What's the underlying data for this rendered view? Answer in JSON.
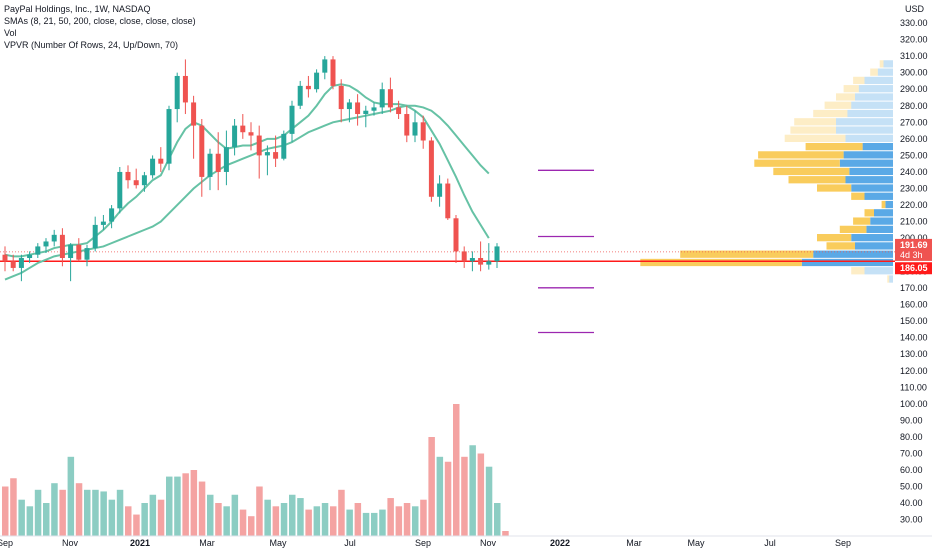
{
  "legend": {
    "line1": "PayPal Holdings, Inc., 1W, NASDAQ",
    "line2": "SMAs (8, 21, 50, 200, close, close, close, close)",
    "line3": "Vol",
    "line4": "VPVR (Number Of Rows, 24, Up/Down, 70)"
  },
  "axis": {
    "currency_label": "USD",
    "price_ticks": [
      "330.00",
      "320.00",
      "310.00",
      "300.00",
      "290.00",
      "280.00",
      "270.00",
      "260.00",
      "250.00",
      "240.00",
      "230.00",
      "220.00",
      "210.00",
      "200.00",
      "190.00",
      "180.00",
      "170.00",
      "160.00",
      "150.00",
      "140.00",
      "130.00",
      "120.00",
      "110.00",
      "100.00",
      "90.00",
      "80.00",
      "70.00",
      "60.00",
      "50.00",
      "40.00",
      "30.00"
    ],
    "time_labels": [
      {
        "label": "Sep",
        "year": false
      },
      {
        "label": "Nov",
        "year": false
      },
      {
        "label": "2021",
        "year": true
      },
      {
        "label": "Mar",
        "year": false
      },
      {
        "label": "May",
        "year": false
      },
      {
        "label": "Jul",
        "year": false
      },
      {
        "label": "Sep",
        "year": false
      },
      {
        "label": "Nov",
        "year": false
      },
      {
        "label": "2022",
        "year": true
      },
      {
        "label": "Mar",
        "year": false
      },
      {
        "label": "May",
        "year": false
      },
      {
        "label": "Jul",
        "year": false
      },
      {
        "label": "Sep",
        "year": false
      }
    ]
  },
  "badges": {
    "last_price": "191.69",
    "countdown": "4d 3h",
    "line_price": "186.05"
  },
  "colors": {
    "up": "#26a69a",
    "down": "#ef5350",
    "up_vol": "#8ccdc3",
    "down_vol": "#f4a3a2",
    "sma": "#66c2a5",
    "hline": "#ff1a1a",
    "level": "#9c27b0",
    "vp_up": "#5aa9e6",
    "vp_down": "#f9cc5c"
  },
  "chart_data": {
    "type": "candlestick",
    "title": "PayPal Holdings, Inc., 1W, NASDAQ",
    "price_range": [
      130,
      330
    ],
    "volume_scale_ticks": [
      30,
      100
    ],
    "candles": [
      {
        "o": 190,
        "h": 195,
        "l": 180,
        "c": 186,
        "v": 50
      },
      {
        "o": 186,
        "h": 190,
        "l": 180,
        "c": 182,
        "v": 55
      },
      {
        "o": 182,
        "h": 190,
        "l": 174,
        "c": 188,
        "v": 42
      },
      {
        "o": 188,
        "h": 192,
        "l": 185,
        "c": 190,
        "v": 38
      },
      {
        "o": 190,
        "h": 197,
        "l": 188,
        "c": 195,
        "v": 48
      },
      {
        "o": 195,
        "h": 200,
        "l": 191,
        "c": 198,
        "v": 40
      },
      {
        "o": 198,
        "h": 205,
        "l": 195,
        "c": 202,
        "v": 52
      },
      {
        "o": 202,
        "h": 206,
        "l": 183,
        "c": 188,
        "v": 48
      },
      {
        "o": 188,
        "h": 197,
        "l": 174,
        "c": 196,
        "v": 68
      },
      {
        "o": 196,
        "h": 200,
        "l": 186,
        "c": 187,
        "v": 52
      },
      {
        "o": 187,
        "h": 196,
        "l": 183,
        "c": 194,
        "v": 48
      },
      {
        "o": 194,
        "h": 213,
        "l": 192,
        "c": 208,
        "v": 48
      },
      {
        "o": 208,
        "h": 214,
        "l": 205,
        "c": 210,
        "v": 47
      },
      {
        "o": 210,
        "h": 220,
        "l": 206,
        "c": 218,
        "v": 42
      },
      {
        "o": 218,
        "h": 243,
        "l": 215,
        "c": 240,
        "v": 48
      },
      {
        "o": 240,
        "h": 244,
        "l": 230,
        "c": 235,
        "v": 38
      },
      {
        "o": 235,
        "h": 242,
        "l": 230,
        "c": 232,
        "v": 33
      },
      {
        "o": 232,
        "h": 240,
        "l": 228,
        "c": 238,
        "v": 40
      },
      {
        "o": 238,
        "h": 250,
        "l": 236,
        "c": 248,
        "v": 45
      },
      {
        "o": 248,
        "h": 255,
        "l": 240,
        "c": 245,
        "v": 42
      },
      {
        "o": 245,
        "h": 280,
        "l": 241,
        "c": 278,
        "v": 56
      },
      {
        "o": 278,
        "h": 300,
        "l": 270,
        "c": 298,
        "v": 56
      },
      {
        "o": 298,
        "h": 308,
        "l": 275,
        "c": 282,
        "v": 58
      },
      {
        "o": 282,
        "h": 286,
        "l": 248,
        "c": 268,
        "v": 60
      },
      {
        "o": 268,
        "h": 272,
        "l": 225,
        "c": 237,
        "v": 53
      },
      {
        "o": 237,
        "h": 254,
        "l": 229,
        "c": 251,
        "v": 45
      },
      {
        "o": 251,
        "h": 264,
        "l": 229,
        "c": 240,
        "v": 40
      },
      {
        "o": 240,
        "h": 265,
        "l": 232,
        "c": 255,
        "v": 38
      },
      {
        "o": 255,
        "h": 272,
        "l": 250,
        "c": 268,
        "v": 45
      },
      {
        "o": 268,
        "h": 275,
        "l": 260,
        "c": 264,
        "v": 36
      },
      {
        "o": 264,
        "h": 270,
        "l": 253,
        "c": 262,
        "v": 32
      },
      {
        "o": 262,
        "h": 268,
        "l": 236,
        "c": 250,
        "v": 50
      },
      {
        "o": 250,
        "h": 256,
        "l": 238,
        "c": 252,
        "v": 42
      },
      {
        "o": 252,
        "h": 262,
        "l": 243,
        "c": 248,
        "v": 38
      },
      {
        "o": 248,
        "h": 265,
        "l": 247,
        "c": 263,
        "v": 40
      },
      {
        "o": 263,
        "h": 283,
        "l": 258,
        "c": 280,
        "v": 45
      },
      {
        "o": 280,
        "h": 295,
        "l": 278,
        "c": 292,
        "v": 43
      },
      {
        "o": 292,
        "h": 298,
        "l": 285,
        "c": 290,
        "v": 36
      },
      {
        "o": 290,
        "h": 302,
        "l": 288,
        "c": 300,
        "v": 38
      },
      {
        "o": 300,
        "h": 310,
        "l": 296,
        "c": 308,
        "v": 40
      },
      {
        "o": 308,
        "h": 310,
        "l": 290,
        "c": 292,
        "v": 38
      },
      {
        "o": 292,
        "h": 296,
        "l": 270,
        "c": 278,
        "v": 48
      },
      {
        "o": 278,
        "h": 284,
        "l": 270,
        "c": 282,
        "v": 36
      },
      {
        "o": 282,
        "h": 287,
        "l": 268,
        "c": 275,
        "v": 40
      },
      {
        "o": 275,
        "h": 280,
        "l": 267,
        "c": 277,
        "v": 34
      },
      {
        "o": 277,
        "h": 282,
        "l": 274,
        "c": 279,
        "v": 34
      },
      {
        "o": 279,
        "h": 294,
        "l": 275,
        "c": 290,
        "v": 36
      },
      {
        "o": 290,
        "h": 297,
        "l": 276,
        "c": 279,
        "v": 43
      },
      {
        "o": 279,
        "h": 283,
        "l": 272,
        "c": 275,
        "v": 38
      },
      {
        "o": 275,
        "h": 280,
        "l": 258,
        "c": 262,
        "v": 40
      },
      {
        "o": 262,
        "h": 277,
        "l": 258,
        "c": 270,
        "v": 38
      },
      {
        "o": 270,
        "h": 274,
        "l": 254,
        "c": 259,
        "v": 42
      },
      {
        "o": 259,
        "h": 261,
        "l": 222,
        "c": 225,
        "v": 80
      },
      {
        "o": 225,
        "h": 238,
        "l": 219,
        "c": 233,
        "v": 68
      },
      {
        "o": 233,
        "h": 236,
        "l": 211,
        "c": 212,
        "v": 65
      },
      {
        "o": 212,
        "h": 214,
        "l": 185,
        "c": 192,
        "v": 100
      },
      {
        "o": 192,
        "h": 195,
        "l": 182,
        "c": 186,
        "v": 68
      },
      {
        "o": 186,
        "h": 192,
        "l": 180,
        "c": 188,
        "v": 75
      },
      {
        "o": 188,
        "h": 198,
        "l": 180,
        "c": 184,
        "v": 70
      },
      {
        "o": 184,
        "h": 197,
        "l": 181,
        "c": 186,
        "v": 62
      },
      {
        "o": 186,
        "h": 197,
        "l": 182,
        "c": 195,
        "v": 40
      }
    ],
    "sma_fast": [
      190,
      189,
      189,
      190,
      191,
      192,
      194,
      195,
      196,
      196,
      197,
      201,
      205,
      210,
      216,
      221,
      225,
      230,
      235,
      238,
      248,
      258,
      266,
      270,
      268,
      263,
      258,
      254,
      255,
      256,
      256,
      258,
      260,
      260,
      262,
      266,
      270,
      274,
      280,
      287,
      292,
      293,
      292,
      289,
      285,
      282,
      281,
      281,
      281,
      280,
      277,
      273,
      265,
      257,
      247,
      237,
      226,
      216,
      208,
      200
    ],
    "sma_slow": [
      175,
      177,
      179,
      182,
      185,
      187,
      189,
      190,
      191,
      192,
      193,
      194,
      195,
      197,
      199,
      201,
      203,
      205,
      207,
      210,
      215,
      220,
      225,
      230,
      234,
      238,
      241,
      244,
      246,
      248,
      250,
      252,
      254,
      255,
      256,
      258,
      261,
      264,
      266,
      268,
      270,
      271,
      272,
      273,
      274,
      275,
      276,
      277,
      279,
      280,
      280,
      279,
      277,
      273,
      268,
      262,
      256,
      250,
      244,
      239
    ],
    "volume_profile": [
      {
        "price": 175,
        "up": 2,
        "down": 1
      },
      {
        "price": 180,
        "up": 15,
        "down": 7
      },
      {
        "price": 185,
        "up": 48,
        "down": 85
      },
      {
        "price": 190,
        "up": 42,
        "down": 70
      },
      {
        "price": 195,
        "up": 20,
        "down": 15
      },
      {
        "price": 200,
        "up": 22,
        "down": 18
      },
      {
        "price": 205,
        "up": 14,
        "down": 14
      },
      {
        "price": 210,
        "up": 12,
        "down": 9
      },
      {
        "price": 215,
        "up": 10,
        "down": 5
      },
      {
        "price": 220,
        "up": 4,
        "down": 2
      },
      {
        "price": 225,
        "up": 15,
        "down": 7
      },
      {
        "price": 230,
        "up": 22,
        "down": 18
      },
      {
        "price": 235,
        "up": 25,
        "down": 30
      },
      {
        "price": 240,
        "up": 23,
        "down": 40
      },
      {
        "price": 245,
        "up": 28,
        "down": 45
      },
      {
        "price": 250,
        "up": 26,
        "down": 45
      },
      {
        "price": 255,
        "up": 16,
        "down": 30
      },
      {
        "price": 260,
        "up": 25,
        "down": 32
      },
      {
        "price": 265,
        "up": 30,
        "down": 24
      },
      {
        "price": 270,
        "up": 30,
        "down": 22
      },
      {
        "price": 275,
        "up": 24,
        "down": 18
      },
      {
        "price": 280,
        "up": 22,
        "down": 14
      },
      {
        "price": 285,
        "up": 20,
        "down": 10
      },
      {
        "price": 290,
        "up": 18,
        "down": 8
      },
      {
        "price": 295,
        "up": 15,
        "down": 6
      },
      {
        "price": 300,
        "up": 8,
        "down": 4
      },
      {
        "price": 305,
        "up": 5,
        "down": 2
      }
    ],
    "horizontal_line": 186.05,
    "dotted_line": 191.69,
    "levels": [
      241,
      201,
      170,
      143
    ]
  }
}
